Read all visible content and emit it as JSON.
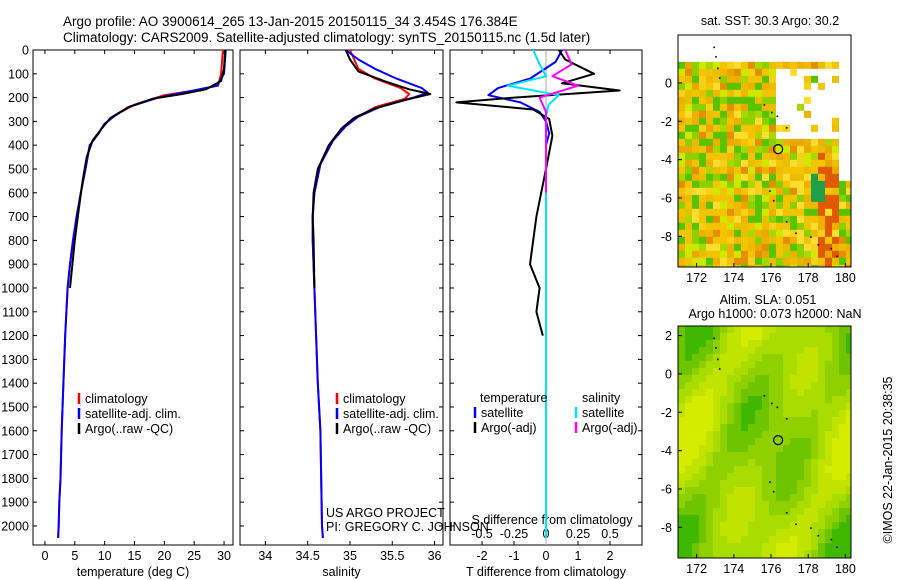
{
  "header": {
    "line1": "Argo profile: AO 3900614_265 13-Jan-2015 20150115_34 3.454S 176.384E",
    "line2": "Climatology: CARS2009. Satellite-adjusted climatology: synTS_20150115.nc (1.5d later)"
  },
  "colors": {
    "climatology": "#ff0000",
    "satellite": "#0000ff",
    "argo": "#000000",
    "sat_salinity": "#00e5ff",
    "argo_salinity": "#ff00ff"
  },
  "chart_data": [
    {
      "type": "line",
      "xlabel": "temperature (deg C)",
      "ylabel": "",
      "xlim": [
        -2,
        31.5
      ],
      "ylim": [
        2080,
        0
      ],
      "yticks": [
        0,
        100,
        200,
        300,
        400,
        500,
        600,
        700,
        800,
        900,
        1000,
        1100,
        1200,
        1300,
        1400,
        1500,
        1600,
        1700,
        1800,
        1900,
        2000
      ],
      "xticks": [
        0,
        5,
        10,
        15,
        20,
        25,
        30
      ],
      "legend": {
        "entries": [
          "climatology",
          "satellite-adj. clim.",
          "Argo(..raw -QC)"
        ],
        "placement": "lower-center"
      },
      "series": [
        {
          "name": "climatology",
          "color": "#ff0000",
          "x": [
            29.8,
            29.5,
            29.0,
            25.0,
            20.0,
            15.0,
            12.0,
            10.0,
            9.0,
            7.5,
            6.8,
            6.0,
            5.3,
            4.7,
            4.2,
            3.8,
            3.4,
            3.1,
            2.8,
            2.6,
            2.4,
            2.3,
            2.2
          ],
          "y": [
            0,
            100,
            150,
            170,
            190,
            230,
            270,
            310,
            350,
            400,
            500,
            600,
            700,
            800,
            900,
            1000,
            1200,
            1400,
            1600,
            1800,
            1900,
            2000,
            2050
          ]
        },
        {
          "name": "satellite-adj. clim.",
          "color": "#0000ff",
          "x": [
            30.3,
            30.0,
            28.8,
            24.0,
            19.0,
            14.0,
            11.5,
            10.0,
            9.0,
            7.5,
            6.8,
            6.0,
            5.3,
            4.7,
            4.2,
            3.8,
            3.4,
            3.1,
            2.8,
            2.6,
            2.4,
            2.3,
            2.2
          ],
          "y": [
            0,
            100,
            150,
            175,
            200,
            240,
            280,
            310,
            350,
            400,
            500,
            600,
            700,
            800,
            900,
            1000,
            1200,
            1400,
            1600,
            1800,
            1900,
            2000,
            2050
          ]
        },
        {
          "name": "Argo(..raw -QC)",
          "color": "#000000",
          "x": [
            30.2,
            30.0,
            29.5,
            27.0,
            23.0,
            18.0,
            14.0,
            11.0,
            9.5,
            8.0,
            7.0,
            6.3,
            5.5,
            5.0,
            4.6,
            4.2
          ],
          "y": [
            0,
            80,
            130,
            165,
            185,
            205,
            240,
            285,
            330,
            380,
            450,
            550,
            700,
            800,
            900,
            1000
          ]
        }
      ]
    },
    {
      "type": "line",
      "xlabel": "salinity",
      "ylabel": "",
      "xlim": [
        33.7,
        36.1
      ],
      "ylim": [
        2080,
        0
      ],
      "xticks": [
        34,
        34.5,
        35,
        35.5,
        36
      ],
      "legend": {
        "entries": [
          "climatology",
          "satellite-adj. clim.",
          "Argo(..raw -QC)"
        ],
        "placement": "lower-right"
      },
      "series": [
        {
          "name": "climatology",
          "color": "#ff0000",
          "x": [
            35.0,
            35.05,
            35.1,
            35.3,
            35.6,
            35.7,
            35.65,
            35.3,
            35.1,
            34.95,
            34.8,
            34.65,
            34.58,
            34.56,
            34.56,
            34.58,
            34.6,
            34.62,
            34.65,
            34.66,
            34.67,
            34.68
          ],
          "y": [
            0,
            40,
            80,
            120,
            160,
            185,
            205,
            240,
            280,
            320,
            380,
            480,
            600,
            700,
            800,
            1000,
            1200,
            1400,
            1600,
            1800,
            2000,
            2050
          ]
        },
        {
          "name": "satellite-adj. clim.",
          "color": "#0000ff",
          "x": [
            34.95,
            35.1,
            35.3,
            35.55,
            35.85,
            35.92,
            35.75,
            35.35,
            35.1,
            34.95,
            34.8,
            34.65,
            34.58,
            34.56,
            34.56,
            34.58,
            34.6,
            34.62,
            34.65,
            34.66,
            34.67,
            34.68
          ],
          "y": [
            0,
            40,
            80,
            120,
            160,
            180,
            200,
            240,
            280,
            320,
            380,
            480,
            600,
            700,
            800,
            1000,
            1200,
            1400,
            1600,
            1800,
            2000,
            2050
          ]
        },
        {
          "name": "Argo(..raw -QC)",
          "color": "#000000",
          "x": [
            34.95,
            35.0,
            35.1,
            35.4,
            35.7,
            35.95,
            35.65,
            35.3,
            35.05,
            34.9,
            34.75,
            34.62,
            34.57,
            34.56,
            34.57,
            34.58
          ],
          "y": [
            0,
            40,
            90,
            130,
            165,
            185,
            210,
            245,
            285,
            330,
            400,
            500,
            600,
            700,
            800,
            1000
          ]
        }
      ]
    },
    {
      "type": "line",
      "xlabel": "T difference from climatology",
      "x2label": "S difference from climatology",
      "xlim": [
        -3,
        3
      ],
      "x2lim": [
        -0.75,
        0.75
      ],
      "ylim": [
        2080,
        0
      ],
      "xticks": [
        -2,
        -1,
        0,
        1,
        2
      ],
      "x2ticks": [
        -0.5,
        -0.25,
        0,
        0.25,
        0.5
      ],
      "x2ticklabels": [
        "-0.5",
        "-0.25",
        "0",
        "0.25",
        "0.5"
      ],
      "legend": {
        "headers": [
          "temperature",
          "salinity"
        ],
        "entries": [
          "satellite",
          "Argo(-adj)",
          "satellite",
          "Argo(-adj)"
        ],
        "placement": "lower-center"
      },
      "series": [
        {
          "name": "satellite",
          "group": "temperature",
          "color": "#0000ff",
          "axis": "T",
          "x": [
            0.5,
            0.3,
            -0.5,
            -1.5,
            -1.8,
            -0.8,
            -0.2,
            0.0,
            0.1,
            0.0,
            0.0,
            0.0,
            0.0,
            0.0
          ],
          "y": [
            0,
            50,
            120,
            160,
            190,
            220,
            260,
            300,
            350,
            400,
            600,
            1000,
            1500,
            2050
          ]
        },
        {
          "name": "Argo(-adj)",
          "group": "temperature",
          "color": "#000000",
          "axis": "T",
          "x": [
            0.4,
            0.6,
            1.5,
            0.5,
            2.3,
            -1.0,
            -2.8,
            -0.4,
            0.1,
            0.2,
            0.0,
            -0.3,
            -0.4,
            -0.5,
            -0.2,
            -0.3,
            -0.1
          ],
          "y": [
            0,
            40,
            100,
            140,
            170,
            200,
            220,
            250,
            290,
            360,
            500,
            700,
            800,
            900,
            1000,
            1100,
            1200
          ]
        },
        {
          "name": "satellite",
          "group": "salinity",
          "color": "#00e5ff",
          "axis": "S",
          "x": [
            -0.1,
            -0.05,
            0.0,
            -0.3,
            0.1,
            0.02,
            0.0,
            0.0,
            0.0,
            0.0,
            0.0,
            0.0
          ],
          "y": [
            0,
            60,
            110,
            150,
            190,
            230,
            280,
            350,
            500,
            1000,
            1500,
            2050
          ]
        },
        {
          "name": "Argo(-adj)",
          "group": "salinity",
          "color": "#ff00ff",
          "axis": "S",
          "x": [
            0.15,
            0.2,
            0.05,
            0.25,
            -0.05,
            0.0,
            0.0,
            0.0,
            0.0
          ],
          "y": [
            0,
            60,
            110,
            150,
            200,
            260,
            320,
            400,
            600
          ]
        }
      ]
    },
    {
      "type": "heatmap",
      "title": "sat. SST: 30.3  Argo: 30.2",
      "xlim": [
        171,
        180.3
      ],
      "ylim": [
        -9.6,
        2.5
      ],
      "xticks": [
        172,
        174,
        176,
        178,
        180
      ],
      "yticks": [
        0,
        -2,
        -4,
        -6,
        -8
      ],
      "marker": {
        "lon": 176.384,
        "lat": -3.454
      }
    },
    {
      "type": "heatmap",
      "title": "Altim. SLA: 0.051",
      "subtitle": "Argo h1000: 0.073 h2000: NaN",
      "xlim": [
        171,
        180.3
      ],
      "ylim": [
        -9.6,
        2.5
      ],
      "xticks": [
        172,
        174,
        176,
        178,
        180
      ],
      "yticks": [
        2,
        0,
        -2,
        -4,
        -6,
        -8
      ],
      "marker": {
        "lon": 176.384,
        "lat": -3.454
      }
    }
  ],
  "texts": {
    "project": "US ARGO PROJECT",
    "pi": "PI: GREGORY C. JOHNSON",
    "credit": "©IMOS 22-Jan-2015 20:38:35"
  }
}
